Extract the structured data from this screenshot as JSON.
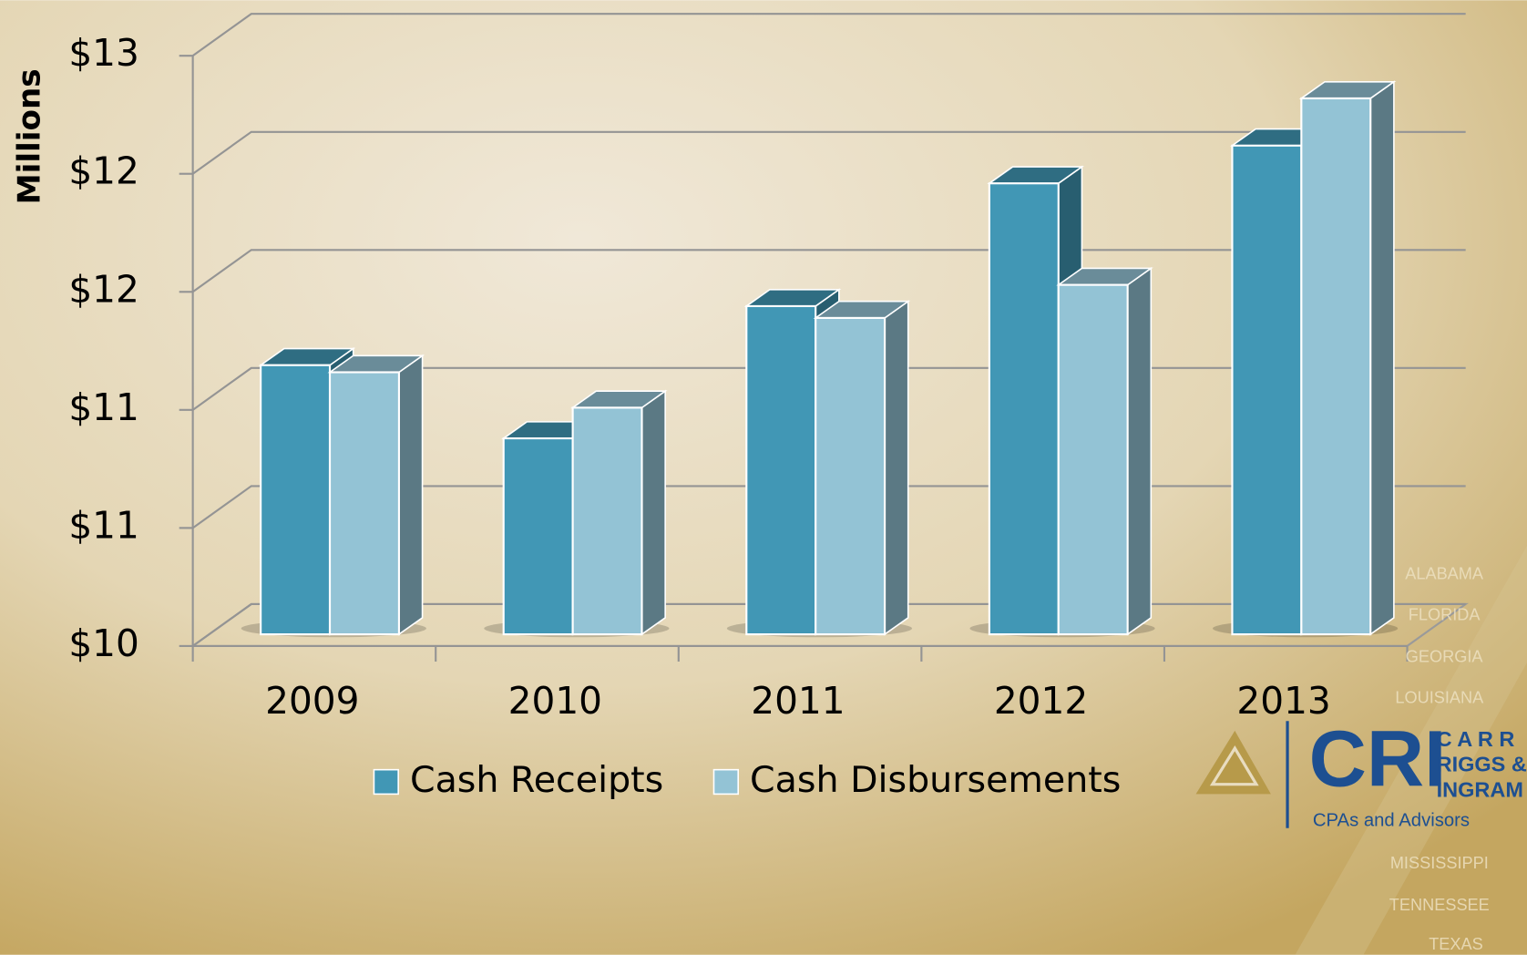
{
  "chart_data": {
    "type": "bar3d",
    "y_axis_label": "Millions",
    "categories": [
      "2009",
      "2010",
      "2011",
      "2012",
      "2013"
    ],
    "series": [
      {
        "name": "Cash Receipts",
        "color": "#4197b5",
        "values": [
          11.14,
          10.83,
          11.39,
          11.91,
          12.07
        ]
      },
      {
        "name": "Cash Disbursements",
        "color": "#93c3d5",
        "values": [
          11.11,
          10.96,
          11.34,
          11.48,
          12.27
        ]
      }
    ],
    "ylim": [
      10,
      12.5
    ],
    "yticks": [
      {
        "value": 10,
        "label": "$10"
      },
      {
        "value": 10.5,
        "label": "$11"
      },
      {
        "value": 11,
        "label": "$11"
      },
      {
        "value": 11.5,
        "label": "$12"
      },
      {
        "value": 12,
        "label": "$12"
      },
      {
        "value": 12.5,
        "label": "$13"
      }
    ],
    "grid": true,
    "legend": "bottom"
  },
  "logo": {
    "mark": "CRI",
    "name": [
      "C A R R",
      "RIGGS &",
      "INGRAM"
    ],
    "tagline": "CPAs and Advisors",
    "states": [
      "ALABAMA",
      "FLORIDA",
      "GEORGIA",
      "LOUISIANA",
      "MISSISSIPPI",
      "TENNESSEE",
      "TEXAS"
    ]
  }
}
